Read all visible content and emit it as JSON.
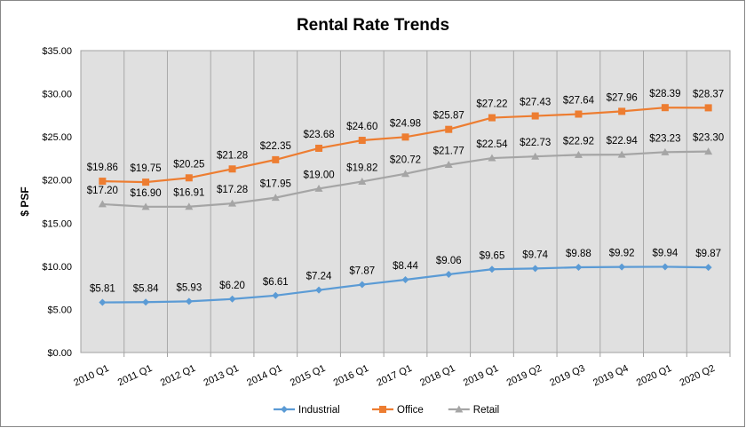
{
  "chart_data": {
    "type": "line",
    "title": "Rental Rate Trends",
    "xlabel": "",
    "ylabel": "$ PSF",
    "ylim": [
      0,
      35
    ],
    "yticks": [
      "$0.00",
      "$5.00",
      "$10.00",
      "$15.00",
      "$20.00",
      "$25.00",
      "$30.00",
      "$35.00"
    ],
    "ytick_values": [
      0,
      5,
      10,
      15,
      20,
      25,
      30,
      35
    ],
    "categories": [
      "2010 Q1",
      "2011 Q1",
      "2012 Q1",
      "2013 Q1",
      "2014 Q1",
      "2015 Q1",
      "2016 Q1",
      "2017 Q1",
      "2018 Q1",
      "2019 Q1",
      "2019 Q2",
      "2019 Q3",
      "2019 Q4",
      "2020 Q1",
      "2020 Q2"
    ],
    "legend_position": "bottom",
    "grid": "vertical",
    "series": [
      {
        "name": "Industrial",
        "color": "#5B9BD5",
        "marker": "diamond",
        "values": [
          5.81,
          5.84,
          5.93,
          6.2,
          6.61,
          7.24,
          7.87,
          8.44,
          9.06,
          9.65,
          9.74,
          9.88,
          9.92,
          9.94,
          9.87
        ]
      },
      {
        "name": "Office",
        "color": "#ED7D31",
        "marker": "square",
        "values": [
          19.86,
          19.75,
          20.25,
          21.28,
          22.35,
          23.68,
          24.6,
          24.98,
          25.87,
          27.22,
          27.43,
          27.64,
          27.96,
          28.39,
          28.37
        ]
      },
      {
        "name": "Retail",
        "color": "#A5A5A5",
        "marker": "triangle",
        "values": [
          17.2,
          16.9,
          16.91,
          17.28,
          17.95,
          19.0,
          19.82,
          20.72,
          21.77,
          22.54,
          22.73,
          22.92,
          22.94,
          23.23,
          23.3
        ]
      }
    ]
  }
}
